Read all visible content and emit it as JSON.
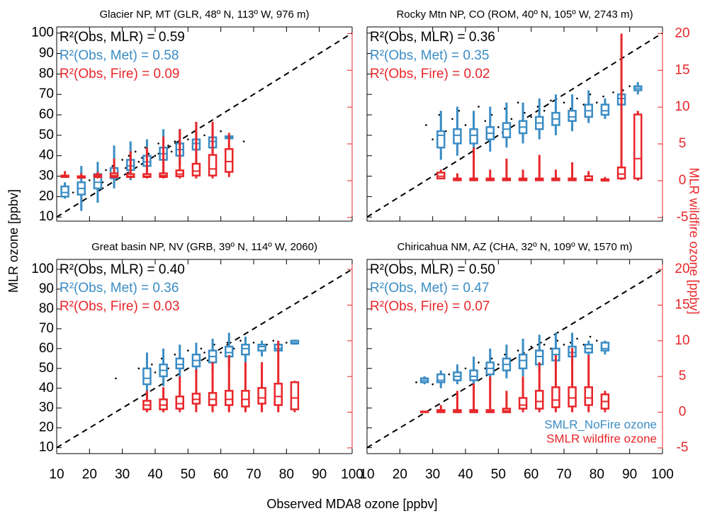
{
  "x_label": "Observed MDA8 ozone [ppbv]",
  "y_label": "MLR ozone [ppbv]",
  "y2_label": "MLR wildfire ozone [ppbv]",
  "chart_data": [
    {
      "type": "boxplot",
      "title": "Glacier NP, MT (GLR, 48º N, 113º W, 976 m)",
      "annotations": [
        {
          "text": "R²(Obs, MLR) = 0.59",
          "color": "#000000"
        },
        {
          "text": "R²(Obs, Met) = 0.58",
          "color": "#3a8cc4"
        },
        {
          "text": "R²(Obs, Fire) = 0.09",
          "color": "#e8262a"
        }
      ],
      "xlim": [
        10,
        100
      ],
      "xticks": [
        10,
        20,
        30,
        40,
        50,
        60,
        70,
        80,
        90,
        100
      ],
      "ylim": [
        8,
        103
      ],
      "yticks": [
        10,
        20,
        30,
        40,
        50,
        60,
        70,
        80,
        90,
        100
      ],
      "y2lim": [
        -5.5,
        20.9
      ],
      "y2ticks": [
        -5,
        0,
        5,
        10,
        15,
        20
      ],
      "scatter": {
        "color": "#000000",
        "x": [
          15,
          18,
          20,
          22,
          24,
          25,
          27,
          28,
          30,
          31,
          32,
          33,
          34,
          35,
          36,
          37,
          38,
          40,
          41,
          42,
          43,
          44,
          45,
          46,
          48,
          50,
          52,
          55,
          58,
          60,
          63,
          67
        ],
        "y": [
          22,
          25,
          28,
          30,
          27,
          33,
          35,
          31,
          38,
          34,
          40,
          36,
          42,
          37,
          39,
          44,
          41,
          40,
          46,
          43,
          38,
          45,
          42,
          47,
          44,
          48,
          46,
          50,
          47,
          52,
          49,
          47
        ]
      },
      "series": [
        {
          "color": "#3a8cc4",
          "axis": "y",
          "x": [
            12.5,
            17.5,
            22.5,
            27.5,
            32.5,
            37.5,
            42.5,
            47.5,
            52.5,
            57.5,
            62.5
          ],
          "whislo": [
            19,
            13,
            17,
            24,
            28,
            30,
            32,
            35,
            37,
            39,
            48
          ],
          "q1": [
            20,
            21,
            24,
            29,
            33,
            35,
            38,
            40,
            43,
            44,
            48.5
          ],
          "med": [
            22,
            24,
            27,
            31,
            35,
            37,
            41,
            43,
            46,
            47,
            49
          ],
          "q3": [
            25,
            27,
            31,
            34,
            38,
            40,
            44,
            46,
            48,
            49,
            49.5
          ],
          "whishi": [
            27,
            35,
            37,
            45,
            47,
            48,
            53,
            53,
            55,
            53,
            50
          ]
        },
        {
          "color": "#e8262a",
          "axis": "y2",
          "x": [
            12.5,
            17.5,
            22.5,
            27.5,
            32.5,
            37.5,
            42.5,
            47.5,
            52.5,
            57.5,
            62.5
          ],
          "whislo": [
            0.4,
            0.3,
            0.3,
            0.3,
            0.3,
            0.3,
            0.3,
            0.3,
            0.3,
            0.3,
            0.5
          ],
          "q1": [
            0.5,
            0.4,
            0.5,
            0.5,
            0.5,
            0.5,
            0.5,
            0.6,
            0.7,
            0.7,
            1.2
          ],
          "med": [
            0.6,
            0.5,
            0.6,
            0.7,
            0.6,
            0.6,
            0.7,
            0.9,
            1.3,
            1.6,
            2.6
          ],
          "q3": [
            0.7,
            0.6,
            0.8,
            1,
            0.9,
            0.9,
            1,
            1.4,
            2.3,
            3.5,
            4.3
          ],
          "whishi": [
            1.3,
            1,
            1.2,
            3,
            4,
            4.5,
            6,
            7,
            8,
            8,
            6.5
          ]
        }
      ]
    },
    {
      "type": "boxplot",
      "title": "Rocky Mtn NP, CO (ROM, 40º N, 105º W, 2743 m)",
      "annotations": [
        {
          "text": "R²(Obs, MLR) = 0.36",
          "color": "#000000"
        },
        {
          "text": "R²(Obs, Met) = 0.35",
          "color": "#3a8cc4"
        },
        {
          "text": "R²(Obs, Fire) = 0.02",
          "color": "#e8262a"
        }
      ],
      "xlim": [
        10,
        100
      ],
      "xticks": [
        10,
        20,
        30,
        40,
        50,
        60,
        70,
        80,
        90,
        100
      ],
      "ylim": [
        8,
        103
      ],
      "yticks": [
        10,
        20,
        30,
        40,
        50,
        60,
        70,
        80,
        90,
        100
      ],
      "y2lim": [
        -5.5,
        20.9
      ],
      "y2ticks": [
        -5,
        0,
        5,
        10,
        15,
        20
      ],
      "scatter": {
        "color": "#000000",
        "x": [
          28,
          30,
          32,
          34,
          36,
          38,
          40,
          42,
          44,
          46,
          48,
          50,
          52,
          54,
          56,
          58,
          60,
          62,
          64,
          66,
          68,
          70,
          72,
          74,
          76,
          78,
          80,
          82,
          85,
          88,
          90
        ],
        "y": [
          55,
          48,
          60,
          52,
          58,
          62,
          55,
          50,
          64,
          57,
          60,
          54,
          63,
          58,
          66,
          61,
          59,
          64,
          62,
          67,
          60,
          66,
          63,
          68,
          65,
          70,
          66,
          69,
          71,
          72,
          74
        ]
      },
      "series": [
        {
          "color": "#3a8cc4",
          "axis": "y",
          "x": [
            32.5,
            37.5,
            42.5,
            47.5,
            52.5,
            57.5,
            62.5,
            67.5,
            72.5,
            77.5,
            82.5,
            87.5,
            92.5
          ],
          "whislo": [
            38,
            40,
            40,
            42,
            44,
            46,
            48,
            50,
            52,
            56,
            58,
            62,
            70
          ],
          "q1": [
            44,
            46,
            46,
            48,
            49,
            51,
            53,
            55,
            57,
            59,
            60,
            65,
            72
          ],
          "med": [
            50,
            50,
            50,
            51,
            53,
            54,
            56,
            58,
            59,
            62,
            62,
            68,
            73
          ],
          "q3": [
            52,
            53,
            53,
            54,
            56,
            57,
            59,
            61,
            62,
            65,
            65,
            70,
            74
          ],
          "whishi": [
            62,
            64,
            62,
            64,
            66,
            66,
            68,
            70,
            70,
            72,
            68,
            74,
            76
          ]
        },
        {
          "color": "#e8262a",
          "axis": "y2",
          "x": [
            32.5,
            37.5,
            42.5,
            47.5,
            52.5,
            57.5,
            62.5,
            67.5,
            72.5,
            77.5,
            82.5,
            87.5,
            92.5
          ],
          "whislo": [
            0.2,
            0,
            0,
            0,
            0,
            0,
            0,
            0,
            0,
            0,
            0,
            0.1,
            0
          ],
          "q1": [
            0.3,
            0.05,
            0.05,
            0.05,
            0.05,
            0.05,
            0.05,
            0.05,
            0.05,
            0.05,
            0,
            0.3,
            0.3
          ],
          "med": [
            0.6,
            0.1,
            0.1,
            0.1,
            0.1,
            0.1,
            0.1,
            0.1,
            0.1,
            0.2,
            0.1,
            0.9,
            3
          ],
          "q3": [
            1.1,
            0.3,
            0.3,
            0.3,
            0.3,
            0.3,
            0.3,
            0.3,
            0.3,
            0.6,
            0.2,
            1.8,
            9
          ],
          "whishi": [
            1.5,
            1,
            4.5,
            1.5,
            3,
            1.5,
            3.5,
            1.5,
            2.5,
            1.3,
            0.5,
            20,
            9.5
          ]
        }
      ]
    },
    {
      "type": "boxplot",
      "title": "Great basin NP, NV (GRB, 39º N, 114º W, 2060)",
      "annotations": [
        {
          "text": "R²(Obs, MLR) = 0.40",
          "color": "#000000"
        },
        {
          "text": "R²(Obs, Met) = 0.36",
          "color": "#3a8cc4"
        },
        {
          "text": "R²(Obs, Fire) = 0.03",
          "color": "#e8262a"
        }
      ],
      "xlim": [
        10,
        100
      ],
      "xticks": [
        10,
        20,
        30,
        40,
        50,
        60,
        70,
        80,
        90,
        100
      ],
      "ylim": [
        7,
        105
      ],
      "yticks": [
        10,
        20,
        30,
        40,
        50,
        60,
        70,
        80,
        90,
        100
      ],
      "y2lim": [
        -5.8,
        21.4
      ],
      "y2ticks": [
        -5,
        0,
        5,
        10,
        15,
        20
      ],
      "scatter": {
        "color": "#000000",
        "x": [
          28,
          35,
          37,
          39,
          40,
          42,
          44,
          46,
          48,
          50,
          52,
          54,
          55,
          56,
          58,
          60,
          62,
          64,
          66,
          68,
          70,
          72,
          74,
          76,
          78,
          80
        ],
        "y": [
          45,
          50,
          44,
          52,
          48,
          55,
          50,
          57,
          53,
          59,
          55,
          60,
          58,
          54,
          62,
          58,
          63,
          60,
          64,
          61,
          63,
          60,
          62,
          64,
          61,
          63
        ]
      },
      "series": [
        {
          "color": "#3a8cc4",
          "axis": "y",
          "x": [
            37.5,
            42.5,
            47.5,
            52.5,
            57.5,
            62.5,
            67.5,
            72.5,
            77.5,
            82.5
          ],
          "whislo": [
            38,
            41,
            45,
            47,
            48,
            51,
            53,
            56,
            58,
            62
          ],
          "q1": [
            42,
            46,
            50,
            51,
            53,
            56,
            57,
            59,
            59,
            62.5
          ],
          "med": [
            45,
            49,
            52,
            54,
            56,
            58,
            60,
            61,
            60,
            63
          ],
          "q3": [
            50,
            52,
            55,
            57,
            59,
            61,
            62,
            62,
            62,
            64
          ],
          "whishi": [
            58,
            60,
            62,
            63,
            65,
            68,
            66,
            64,
            64,
            64.5
          ]
        },
        {
          "color": "#e8262a",
          "axis": "y2",
          "x": [
            37.5,
            42.5,
            47.5,
            52.5,
            57.5,
            62.5,
            67.5,
            72.5,
            77.5,
            82.5
          ],
          "whislo": [
            0,
            0,
            0,
            0,
            0,
            0,
            0,
            0,
            0,
            0
          ],
          "q1": [
            0.4,
            0.4,
            0.5,
            1.2,
            1,
            1,
            0.8,
            1.2,
            1,
            0.4
          ],
          "med": [
            1,
            1,
            1.2,
            1.8,
            1.8,
            1.8,
            1.8,
            2,
            2.2,
            2
          ],
          "q3": [
            1.6,
            1.8,
            2.2,
            2.6,
            2.7,
            3,
            3,
            3.4,
            4,
            4.2
          ],
          "whishi": [
            3,
            3.5,
            5,
            6,
            7,
            8,
            7,
            7,
            10,
            4.4
          ]
        }
      ]
    },
    {
      "type": "boxplot",
      "title": "Chiricahua NM, AZ (CHA, 32º N, 109º W, 1570 m)",
      "annotations": [
        {
          "text": "R²(Obs, MLR) = 0.50",
          "color": "#000000"
        },
        {
          "text": "R²(Obs, Met) = 0.47",
          "color": "#3a8cc4"
        },
        {
          "text": "R²(Obs, Fire) = 0.07",
          "color": "#e8262a"
        }
      ],
      "xlim": [
        10,
        100
      ],
      "xticks": [
        10,
        20,
        30,
        40,
        50,
        60,
        70,
        80,
        90,
        100
      ],
      "ylim": [
        7,
        105
      ],
      "yticks": [
        10,
        20,
        30,
        40,
        50,
        60,
        70,
        80,
        90,
        100
      ],
      "y2lim": [
        -5.8,
        21.4
      ],
      "y2ticks": [
        -5,
        0,
        5,
        10,
        15,
        20
      ],
      "scatter": {
        "color": "#000000",
        "x": [
          25,
          28,
          30,
          32,
          35,
          38,
          40,
          42,
          44,
          46,
          48,
          50,
          52,
          54,
          56,
          58,
          60,
          62,
          64,
          66,
          68,
          70,
          72,
          74,
          76,
          78,
          80
        ],
        "y": [
          43,
          45,
          42,
          46,
          47,
          44,
          50,
          48,
          53,
          50,
          55,
          52,
          57,
          54,
          59,
          56,
          61,
          58,
          62,
          60,
          64,
          62,
          63,
          65,
          62,
          66,
          64
        ]
      },
      "legend": "lower right",
      "series": [
        {
          "name": "SMLR_NoFire ozone",
          "color": "#3a8cc4",
          "axis": "y",
          "x": [
            27.5,
            32.5,
            37.5,
            42.5,
            47.5,
            52.5,
            57.5,
            62.5,
            67.5,
            72.5,
            77.5,
            82.5
          ],
          "whislo": [
            42,
            40,
            42,
            41,
            44,
            45,
            46,
            48,
            50,
            52,
            56,
            57
          ],
          "q1": [
            43,
            43,
            44,
            44,
            47,
            49,
            50,
            52,
            54,
            56,
            58,
            59
          ],
          "med": [
            44,
            44,
            46,
            46,
            50,
            52,
            54,
            56,
            57,
            58,
            60,
            60
          ],
          "q3": [
            45,
            47,
            48,
            49,
            53,
            55,
            57,
            59,
            60,
            61,
            62,
            63
          ],
          "whishi": [
            46,
            49,
            52,
            56,
            60,
            62,
            65,
            67,
            68,
            68,
            64,
            64
          ]
        },
        {
          "name": "SMLR wildfire ozone",
          "color": "#e8262a",
          "axis": "y2",
          "x": [
            27.5,
            32.5,
            37.5,
            42.5,
            47.5,
            52.5,
            57.5,
            62.5,
            67.5,
            72.5,
            77.5,
            82.5
          ],
          "whislo": [
            0,
            0,
            0,
            0,
            0,
            0,
            0,
            0,
            0,
            0,
            0,
            0
          ],
          "q1": [
            0,
            0,
            0,
            0,
            0,
            0,
            0.5,
            0.5,
            0.7,
            0.8,
            1,
            0.5
          ],
          "med": [
            0.05,
            0.1,
            0.1,
            0.1,
            0.1,
            0.2,
            1,
            1.5,
            1.7,
            2,
            2,
            1.5
          ],
          "q3": [
            0.1,
            0.3,
            0.3,
            0.3,
            0.3,
            0.5,
            2,
            3,
            3.5,
            3.5,
            3.5,
            2.5
          ],
          "whishi": [
            0.2,
            1,
            3,
            4,
            5,
            3,
            5,
            7,
            8,
            9,
            8,
            3
          ]
        }
      ]
    }
  ]
}
